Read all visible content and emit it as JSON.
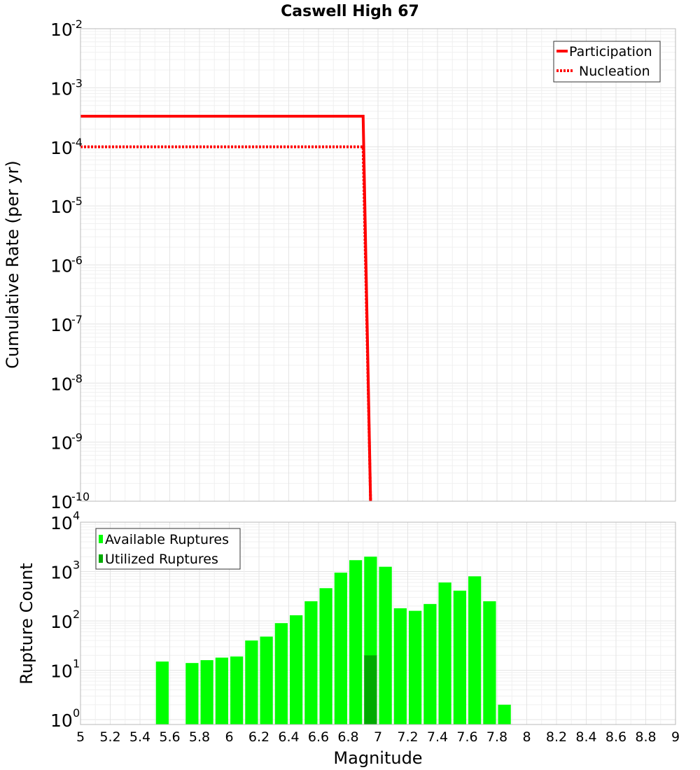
{
  "chart_data": [
    {
      "type": "line",
      "title": "Caswell High 67",
      "ylabel": "Cumulative Rate (per yr)",
      "xlim": [
        5,
        9
      ],
      "ylim_log10": [
        -10,
        -2
      ],
      "y_ticks": [
        {
          "base": "10",
          "exp": "-2",
          "log": -2
        },
        {
          "base": "10",
          "exp": "-3",
          "log": -3
        },
        {
          "base": "10",
          "exp": "-4",
          "log": -4
        },
        {
          "base": "10",
          "exp": "-5",
          "log": -5
        },
        {
          "base": "10",
          "exp": "-6",
          "log": -6
        },
        {
          "base": "10",
          "exp": "-7",
          "log": -7
        },
        {
          "base": "10",
          "exp": "-8",
          "log": -8
        },
        {
          "base": "10",
          "exp": "-9",
          "log": -9
        },
        {
          "base": "10",
          "exp": "-10",
          "log": -10
        }
      ],
      "series": [
        {
          "name": "Participation",
          "color": "#ff0000",
          "style": "solid",
          "x": [
            5.0,
            6.9,
            6.95
          ],
          "y": [
            0.00033,
            0.00033,
            1e-10
          ]
        },
        {
          "name": "Nucleation",
          "color": "#ff0000",
          "style": "dotted",
          "x": [
            5.0,
            6.9,
            6.95
          ],
          "y": [
            0.0001,
            0.0001,
            1e-10
          ]
        }
      ],
      "legend_position": "top-right"
    },
    {
      "type": "bar",
      "ylabel": "Rupture Count",
      "xlabel": "Magnitude",
      "xlim": [
        5,
        9
      ],
      "ylim_log10": [
        -0.1,
        4
      ],
      "y_ticks": [
        {
          "base": "10",
          "exp": "4",
          "log": 4
        },
        {
          "base": "10",
          "exp": "3",
          "log": 3
        },
        {
          "base": "10",
          "exp": "2",
          "log": 2
        },
        {
          "base": "10",
          "exp": "1",
          "log": 1
        },
        {
          "base": "10",
          "exp": "0",
          "log": 0
        }
      ],
      "x_ticks": [
        "5",
        "5.2",
        "5.4",
        "5.6",
        "5.8",
        "6",
        "6.2",
        "6.4",
        "6.6",
        "6.8",
        "7",
        "7.2",
        "7.4",
        "7.6",
        "7.8",
        "8",
        "8.2",
        "8.4",
        "8.6",
        "8.8",
        "9"
      ],
      "bin_width": 0.1,
      "series": [
        {
          "name": "Available Ruptures",
          "color": "#00ff00",
          "bins": [
            5.55,
            5.75,
            5.85,
            5.95,
            6.05,
            6.15,
            6.25,
            6.35,
            6.45,
            6.55,
            6.65,
            6.75,
            6.85,
            6.95,
            7.05,
            7.15,
            7.25,
            7.35,
            7.45,
            7.55,
            7.65,
            7.75,
            7.85
          ],
          "values": [
            15,
            14,
            16,
            18,
            19,
            40,
            48,
            90,
            130,
            250,
            460,
            950,
            1700,
            2000,
            1250,
            180,
            160,
            220,
            600,
            410,
            800,
            250,
            2
          ]
        },
        {
          "name": "Utilized Ruptures",
          "color": "#00aa00",
          "bins": [
            6.95
          ],
          "values": [
            20
          ]
        }
      ],
      "legend_position": "top-left"
    }
  ]
}
